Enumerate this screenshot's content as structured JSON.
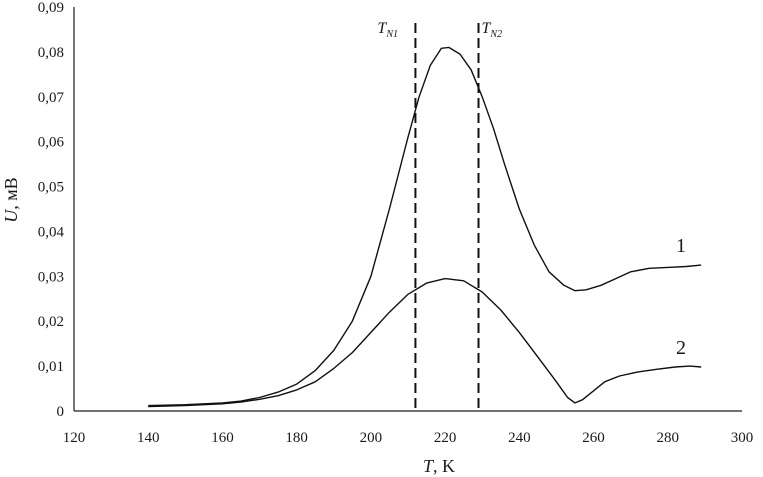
{
  "chart_data": {
    "type": "line",
    "xlabel": {
      "var": "T",
      "unit": ", K"
    },
    "ylabel": {
      "var": "U",
      "unit": ", мВ"
    },
    "xlim": [
      120,
      300
    ],
    "ylim": [
      0,
      0.09
    ],
    "x_ticks": [
      "120",
      "140",
      "160",
      "180",
      "200",
      "220",
      "240",
      "260",
      "280",
      "300"
    ],
    "y_ticks": [
      "0",
      "0,01",
      "0,02",
      "0,03",
      "0,04",
      "0,05",
      "0,06",
      "0,07",
      "0,08",
      "0,09"
    ],
    "grid": false,
    "markers": [
      {
        "main": "T",
        "sub": "N1",
        "x": 212
      },
      {
        "main": "T",
        "sub": "N2",
        "x": 229
      }
    ],
    "series": [
      {
        "label": "1",
        "x": [
          140,
          150,
          160,
          165,
          170,
          175,
          180,
          185,
          190,
          195,
          200,
          205,
          210,
          213,
          216,
          219,
          221,
          224,
          227,
          230,
          233,
          236,
          240,
          244,
          248,
          252,
          255,
          258,
          262,
          266,
          270,
          275,
          280,
          285,
          289
        ],
        "y": [
          0.0012,
          0.0014,
          0.0018,
          0.0022,
          0.003,
          0.0042,
          0.006,
          0.009,
          0.0135,
          0.02,
          0.03,
          0.045,
          0.061,
          0.07,
          0.077,
          0.0808,
          0.081,
          0.0795,
          0.076,
          0.07,
          0.063,
          0.055,
          0.045,
          0.037,
          0.031,
          0.028,
          0.0268,
          0.027,
          0.028,
          0.0295,
          0.031,
          0.0318,
          0.032,
          0.0322,
          0.0325
        ]
      },
      {
        "label": "2",
        "x": [
          140,
          150,
          160,
          165,
          170,
          175,
          180,
          185,
          190,
          195,
          200,
          205,
          210,
          215,
          220,
          225,
          230,
          235,
          240,
          245,
          250,
          253,
          255,
          257,
          260,
          263,
          267,
          272,
          277,
          282,
          286,
          289
        ],
        "y": [
          0.001,
          0.0012,
          0.0016,
          0.002,
          0.0026,
          0.0034,
          0.0047,
          0.0065,
          0.0095,
          0.013,
          0.0175,
          0.022,
          0.026,
          0.0285,
          0.0295,
          0.029,
          0.0265,
          0.0225,
          0.0175,
          0.012,
          0.0065,
          0.003,
          0.0018,
          0.0025,
          0.0045,
          0.0065,
          0.0078,
          0.0087,
          0.0093,
          0.0098,
          0.01,
          0.0098
        ]
      }
    ]
  }
}
